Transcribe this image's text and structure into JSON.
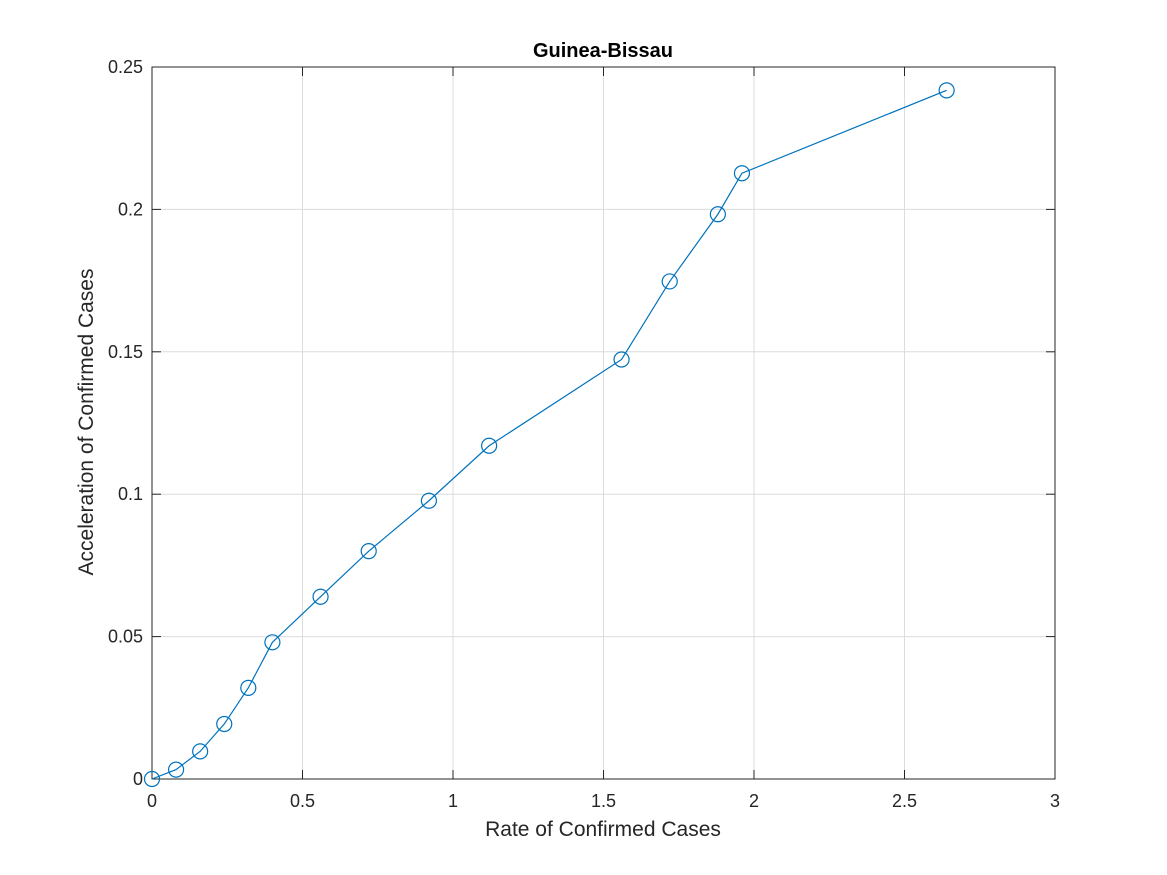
{
  "chart_data": {
    "type": "line",
    "title": "Guinea-Bissau",
    "xlabel": "Rate of Confirmed Cases",
    "ylabel": "Acceleration of Confirmed Cases",
    "xlim": [
      0,
      3
    ],
    "ylim": [
      0,
      0.25
    ],
    "xticks": [
      0,
      0.5,
      1,
      1.5,
      2,
      2.5,
      3
    ],
    "xtick_labels": [
      "0",
      "0.5",
      "1",
      "1.5",
      "2",
      "2.5",
      "3"
    ],
    "yticks": [
      0,
      0.05,
      0.1,
      0.15,
      0.2,
      0.25
    ],
    "ytick_labels": [
      "0",
      "0.05",
      "0.1",
      "0.15",
      "0.2",
      "0.25"
    ],
    "grid": true,
    "marker": "circle",
    "color": "#0072BD",
    "series": [
      {
        "x": [
          0,
          0.08,
          0.16,
          0.24,
          0.32,
          0.4,
          0.56,
          0.72,
          0.92,
          1.12,
          1.56,
          1.72,
          1.88,
          1.96,
          2.64
        ],
        "y": [
          0,
          0.0033,
          0.0097,
          0.0193,
          0.032,
          0.048,
          0.064,
          0.08,
          0.0977,
          0.117,
          0.1473,
          0.1747,
          0.1983,
          0.2127,
          0.2418
        ]
      }
    ]
  }
}
